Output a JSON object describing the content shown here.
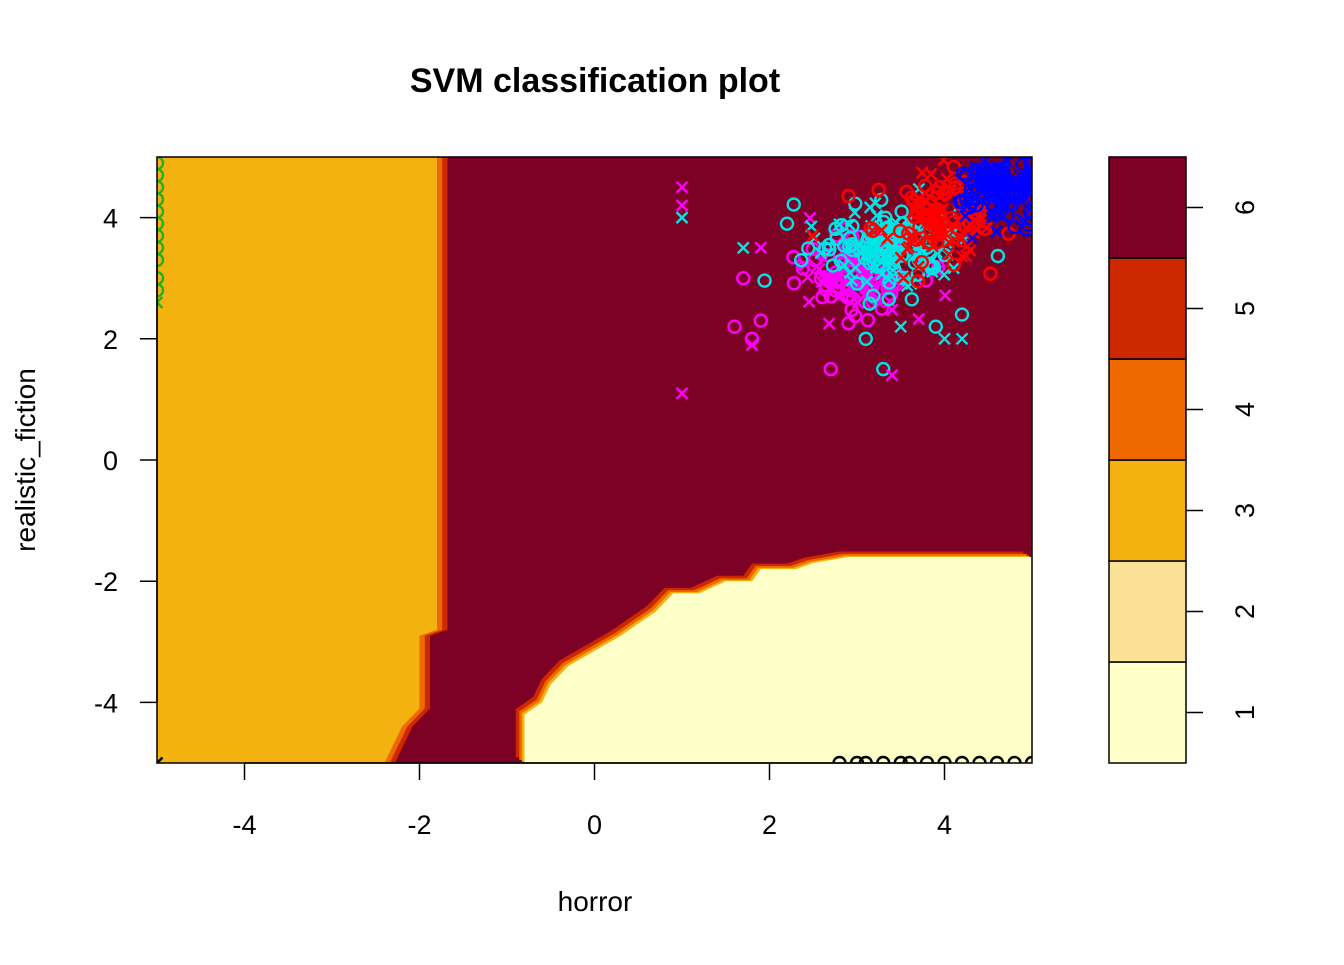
{
  "chart_data": {
    "type": "heatmap",
    "title": "SVM classification plot",
    "xlabel": "horror",
    "ylabel": "realistic_fiction",
    "xlim": [
      -5,
      5
    ],
    "ylim": [
      -5,
      5
    ],
    "x_ticks": [
      -4,
      -2,
      0,
      2,
      4
    ],
    "y_ticks": [
      -4,
      -2,
      0,
      2,
      4
    ],
    "legend": {
      "placement": "right",
      "levels": [
        1,
        2,
        3,
        4,
        5,
        6
      ],
      "colors": [
        "#FFFFC8",
        "#FAE196",
        "#F3B20F",
        "#EE6A00",
        "#CB2800",
        "#7D0025"
      ]
    },
    "regions": [
      {
        "class": 3,
        "description_x": "horror < about -2",
        "color": "#F3B20F"
      },
      {
        "class": 6,
        "description_x": "main region",
        "color": "#7D0025"
      },
      {
        "class": 1,
        "description_x": "horror > about -0.9 and realistic_fiction < about -1.6",
        "color": "#FFFFC8"
      }
    ],
    "boundary_left": [
      [
        -1.8,
        5
      ],
      [
        -1.8,
        -2.8
      ],
      [
        -2.0,
        -2.9
      ],
      [
        -2.0,
        -4.1
      ],
      [
        -2.2,
        -4.4
      ],
      [
        -2.4,
        -5
      ]
    ],
    "boundary_lower": [
      [
        -0.8,
        -5
      ],
      [
        -0.8,
        -4.2
      ],
      [
        -0.6,
        -4.0
      ],
      [
        -0.5,
        -3.7
      ],
      [
        -0.3,
        -3.4
      ],
      [
        0.3,
        -2.9
      ],
      [
        0.7,
        -2.5
      ],
      [
        0.9,
        -2.2
      ],
      [
        1.2,
        -2.2
      ],
      [
        1.5,
        -2.0
      ],
      [
        1.8,
        -2.0
      ],
      [
        1.9,
        -1.8
      ],
      [
        2.3,
        -1.8
      ],
      [
        2.5,
        -1.7
      ],
      [
        2.9,
        -1.6
      ],
      [
        5,
        -1.6
      ]
    ],
    "point_colors": {
      "1": "#000000",
      "2": "#DF536B",
      "3": "#22B022",
      "4": "#FF0000",
      "5": "#0000FF",
      "6": "#00E5E5",
      "7": "#FF00FF"
    },
    "points": {
      "outliers": [
        [
          1.0,
          4.5,
          7,
          "x"
        ],
        [
          1.0,
          4.2,
          7,
          "x"
        ],
        [
          1.0,
          4.0,
          6,
          "x"
        ],
        [
          1.0,
          1.1,
          7,
          "x"
        ],
        [
          1.6,
          2.2,
          7,
          "o"
        ],
        [
          1.8,
          2.0,
          7,
          "o"
        ],
        [
          1.8,
          1.9,
          7,
          "x"
        ],
        [
          2.7,
          1.5,
          7,
          "o"
        ],
        [
          3.3,
          1.5,
          6,
          "o"
        ],
        [
          3.4,
          1.4,
          7,
          "x"
        ],
        [
          1.7,
          3.5,
          6,
          "x"
        ],
        [
          1.7,
          3.0,
          7,
          "o"
        ],
        [
          1.9,
          2.3,
          7,
          "o"
        ],
        [
          2.2,
          3.9,
          6,
          "o"
        ],
        [
          3.1,
          2.0,
          6,
          "o"
        ],
        [
          3.5,
          2.2,
          6,
          "x"
        ],
        [
          4.0,
          2.0,
          6,
          "x"
        ],
        [
          4.2,
          2.0,
          6,
          "x"
        ],
        [
          4.2,
          2.4,
          6,
          "o"
        ],
        [
          3.9,
          2.2,
          6,
          "o"
        ]
      ],
      "green_column": [
        [
          -5.0,
          4.9,
          3,
          "o"
        ],
        [
          -5.0,
          4.7,
          3,
          "o"
        ],
        [
          -5.0,
          4.5,
          3,
          "o"
        ],
        [
          -5.0,
          4.3,
          3,
          "o"
        ],
        [
          -5.0,
          4.1,
          3,
          "o"
        ],
        [
          -5.0,
          3.9,
          3,
          "o"
        ],
        [
          -5.0,
          3.7,
          3,
          "o"
        ],
        [
          -5.0,
          3.5,
          3,
          "o"
        ],
        [
          -5.0,
          3.3,
          3,
          "o"
        ],
        [
          -5.0,
          3.0,
          3,
          "o"
        ],
        [
          -5.0,
          2.8,
          3,
          "o"
        ],
        [
          -5.0,
          2.6,
          3,
          "x"
        ]
      ],
      "bottom_row": [
        [
          2.8,
          -5.0,
          1,
          "o"
        ],
        [
          3.0,
          -5.0,
          1,
          "o"
        ],
        [
          3.1,
          -5.0,
          1,
          "o"
        ],
        [
          3.3,
          -5.0,
          1,
          "o"
        ],
        [
          3.5,
          -5.0,
          1,
          "o"
        ],
        [
          3.6,
          -5.0,
          1,
          "o"
        ],
        [
          3.8,
          -5.0,
          1,
          "o"
        ],
        [
          4.0,
          -5.0,
          1,
          "o"
        ],
        [
          4.2,
          -5.0,
          1,
          "o"
        ],
        [
          4.4,
          -5.0,
          1,
          "o"
        ],
        [
          4.6,
          -5.0,
          1,
          "o"
        ],
        [
          4.8,
          -5.0,
          1,
          "o"
        ],
        [
          5.0,
          -5.0,
          1,
          "o"
        ],
        [
          -5.0,
          -5.0,
          1,
          "x"
        ]
      ],
      "clusters": [
        {
          "class": 7,
          "cx": 3.0,
          "cy": 3.1,
          "sx": 0.35,
          "sy": 0.35,
          "n": 150
        },
        {
          "class": 6,
          "cx": 3.3,
          "cy": 3.5,
          "sx": 0.4,
          "sy": 0.35,
          "n": 160
        },
        {
          "class": 4,
          "cx": 3.9,
          "cy": 4.0,
          "sx": 0.35,
          "sy": 0.35,
          "n": 130
        },
        {
          "class": 5,
          "cx": 4.6,
          "cy": 4.5,
          "sx": 0.25,
          "sy": 0.25,
          "n": 140
        }
      ]
    }
  }
}
